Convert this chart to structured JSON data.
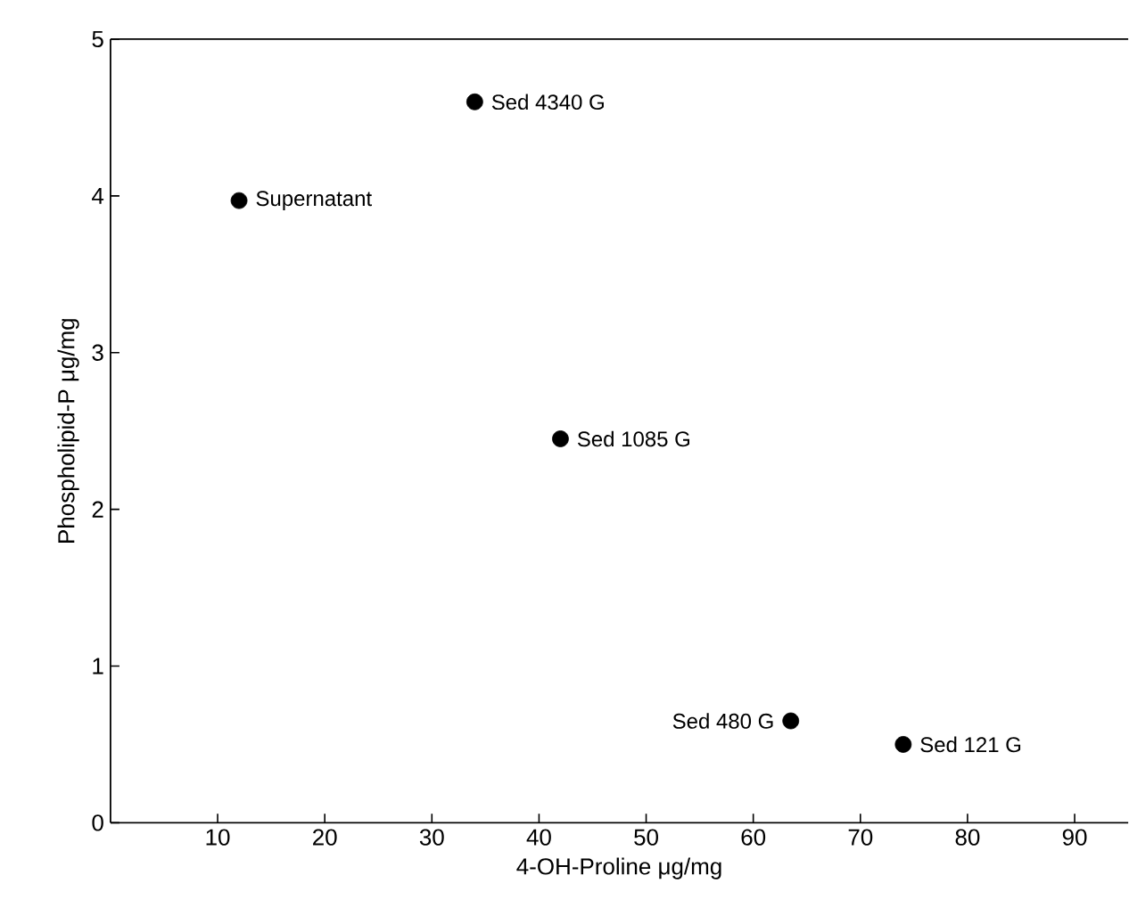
{
  "chart_data": {
    "type": "scatter",
    "xlabel": "4-OH-Proline μg/mg",
    "ylabel": "Phospholipid-P μg/mg",
    "x": [
      12,
      34,
      42,
      63.5,
      74
    ],
    "values": [
      3.97,
      4.6,
      2.45,
      0.65,
      0.5
    ],
    "color": "#000000",
    "marker": "circle",
    "xlim": [
      0,
      95
    ],
    "ylim": [
      0,
      5
    ],
    "xticks": [
      10,
      20,
      30,
      40,
      50,
      60,
      70,
      80,
      90
    ],
    "yticks": [
      0,
      1,
      2,
      3,
      4,
      5
    ],
    "annotations": [
      {
        "text": "Supernatant",
        "x": 12,
        "y": 3.97
      },
      {
        "text": "Sed 4340 G",
        "x": 34,
        "y": 4.6
      },
      {
        "text": "Sed 1085 G",
        "x": 42,
        "y": 2.45
      },
      {
        "text": "Sed 480 G",
        "x": 63.5,
        "y": 0.65
      },
      {
        "text": "Sed 121 G",
        "x": 74,
        "y": 0.5
      }
    ]
  }
}
